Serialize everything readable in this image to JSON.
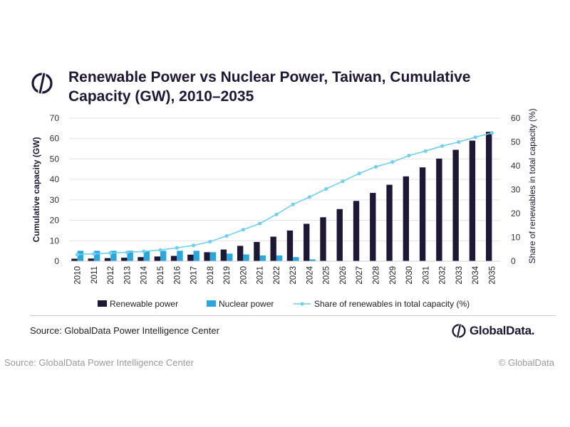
{
  "title": "Renewable Power vs Nuclear Power, Taiwan, Cumulative Capacity (GW), 2010–2035",
  "source_inner": "Source: GlobalData Power Intelligence Center",
  "logo_text": "GlobalData.",
  "source_outer": "Source: GlobalData Power Intelligence Center",
  "copyright": "© GlobalData",
  "colors": {
    "renewable": "#1e1736",
    "nuclear": "#29a8e0",
    "share": "#6fd0ef",
    "title": "#1e1736"
  },
  "chart_data": {
    "type": "bar",
    "title": "Renewable Power vs Nuclear Power, Taiwan, Cumulative Capacity (GW), 2010–2035",
    "categories": [
      "2010",
      "2011",
      "2012",
      "2013",
      "2014",
      "2015",
      "2016",
      "2017",
      "2018",
      "2019",
      "2020",
      "2021",
      "2022",
      "2023",
      "2024",
      "2025",
      "2026",
      "2027",
      "2028",
      "2029",
      "2030",
      "2031",
      "2032",
      "2033",
      "2034",
      "2035"
    ],
    "ylabel": "Cumulative capacity (GW)",
    "y2label": "Share of renewables in total capacity (%)",
    "ylim": [
      0,
      70
    ],
    "y2lim": [
      0,
      60
    ],
    "yticks": [
      0,
      10,
      20,
      30,
      40,
      50,
      60,
      70
    ],
    "y2ticks": [
      0,
      10,
      20,
      30,
      40,
      50,
      60
    ],
    "grid": true,
    "legend_position": "bottom",
    "series": [
      {
        "name": "Renewable power",
        "kind": "bar",
        "axis": "left",
        "values": [
          1.2,
          1.3,
          1.5,
          1.7,
          2.0,
          2.3,
          2.6,
          3.2,
          4.4,
          5.7,
          7.5,
          9.4,
          12.0,
          15.0,
          18.3,
          21.5,
          25.5,
          29.5,
          33.4,
          37.4,
          41.5,
          45.9,
          50.2,
          54.5,
          59.0,
          63.3
        ]
      },
      {
        "name": "Nuclear power",
        "kind": "bar",
        "axis": "left",
        "values": [
          5.1,
          5.1,
          5.1,
          5.1,
          5.1,
          5.1,
          5.1,
          5.1,
          4.4,
          3.7,
          3.3,
          2.8,
          2.8,
          2.0,
          0.9,
          0,
          0,
          0,
          0,
          0,
          0,
          0,
          0,
          0,
          0,
          0
        ]
      },
      {
        "name": "Share of renewables in total capacity (%)",
        "kind": "line",
        "axis": "right",
        "values": [
          2.8,
          3.1,
          3.4,
          3.7,
          4.1,
          4.7,
          5.6,
          6.6,
          8.2,
          10.6,
          13.2,
          15.8,
          19.6,
          23.8,
          26.9,
          30.3,
          33.5,
          36.8,
          39.6,
          41.6,
          44.3,
          46.2,
          48.3,
          50.0,
          52.0,
          53.8
        ]
      }
    ]
  }
}
